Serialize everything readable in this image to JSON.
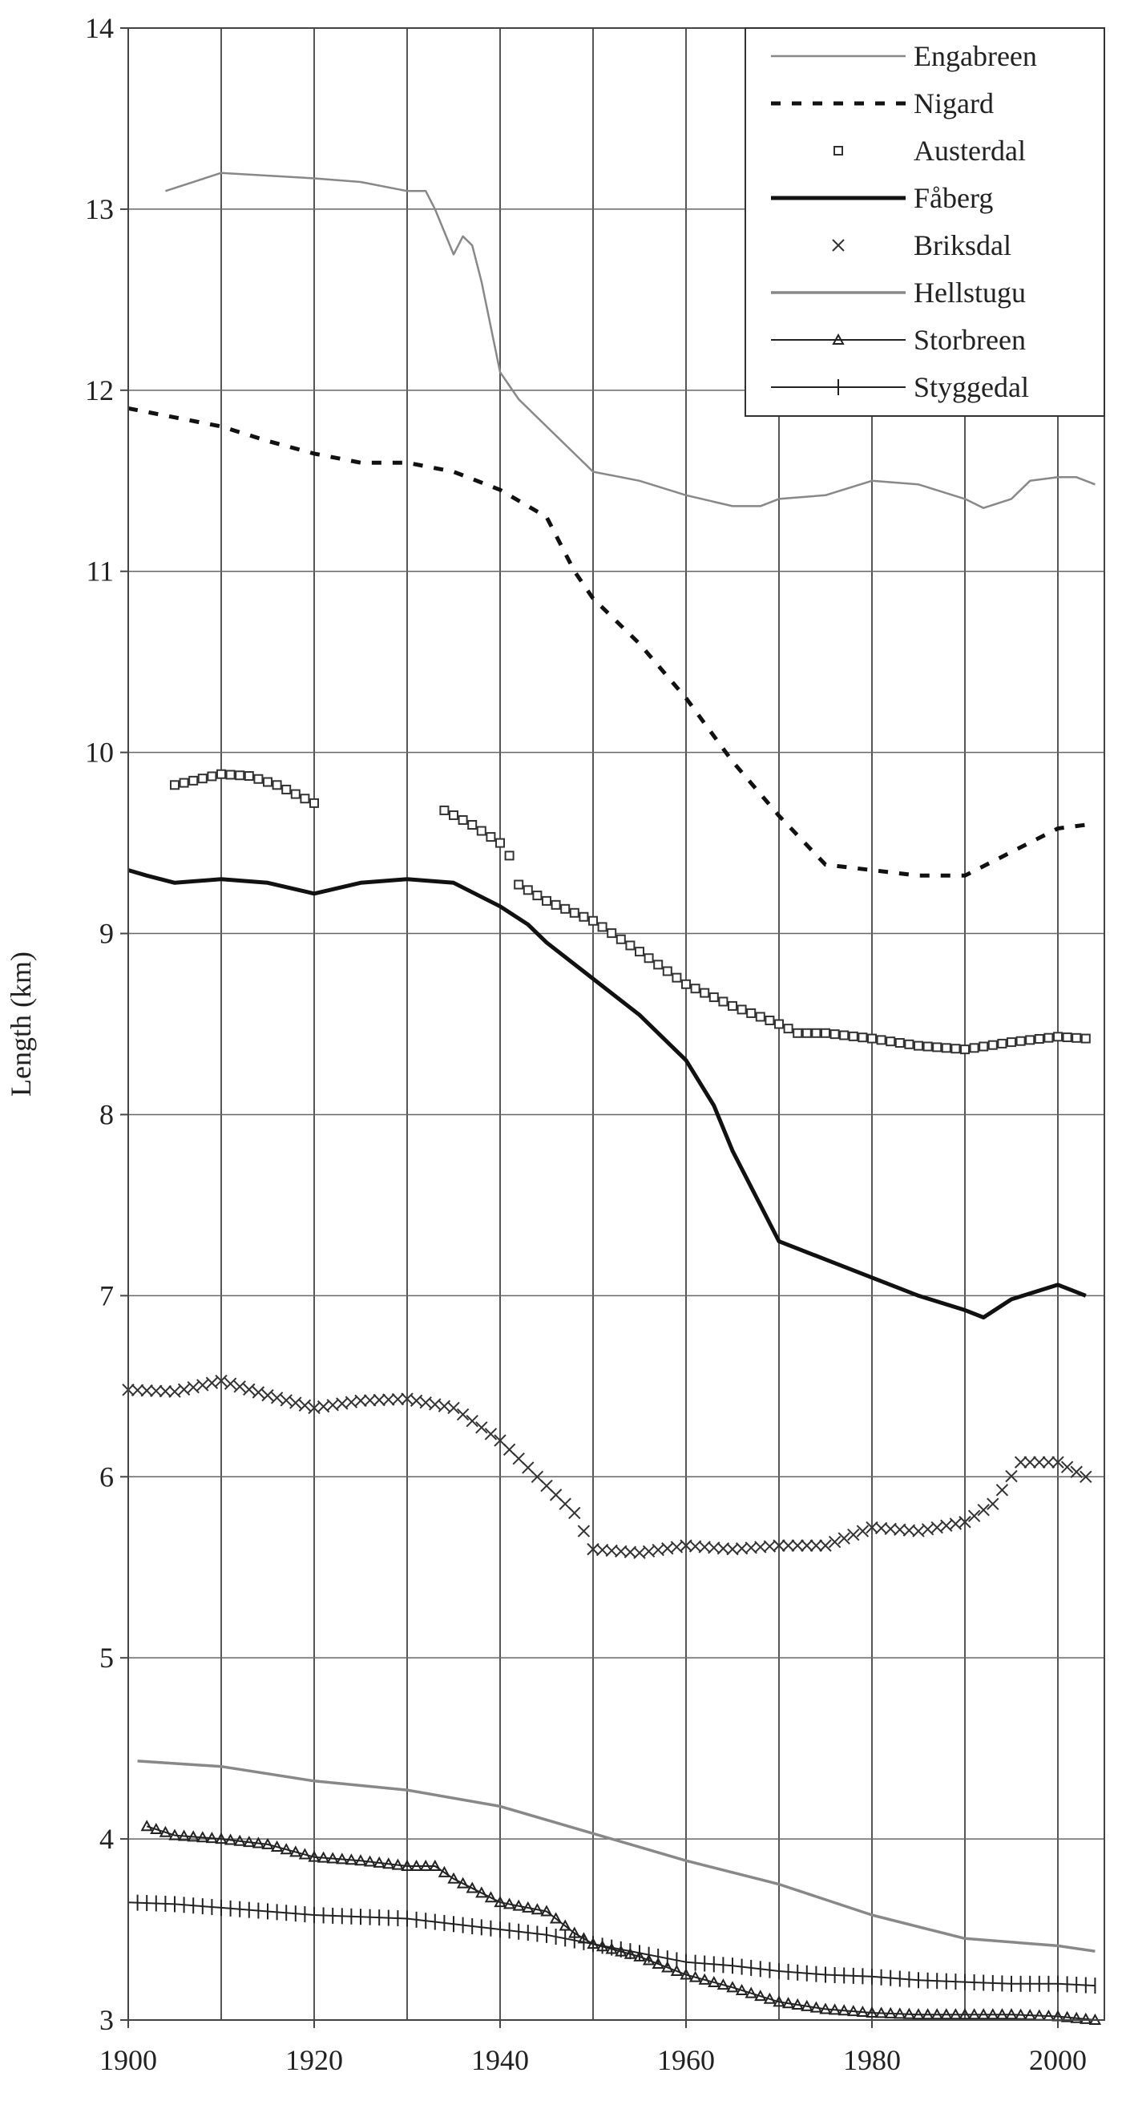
{
  "chart_data": {
    "type": "line",
    "title": "",
    "xlabel": "",
    "ylabel": "Length (km)",
    "xlim": [
      1900,
      2005
    ],
    "ylim": [
      3,
      14
    ],
    "x_ticks": [
      "1900",
      "1920",
      "1940",
      "1960",
      "1980",
      "2000"
    ],
    "y_ticks": [
      "3",
      "4",
      "5",
      "6",
      "7",
      "8",
      "9",
      "10",
      "11",
      "12",
      "13",
      "14"
    ],
    "grid": "vertical",
    "legend_position": "top-right",
    "series": [
      {
        "name": "Engabreen",
        "color": "#888888",
        "style": "thin-solid",
        "points": [
          [
            1904,
            13.1
          ],
          [
            1910,
            13.2
          ],
          [
            1920,
            13.17
          ],
          [
            1925,
            13.15
          ],
          [
            1930,
            13.1
          ],
          [
            1932,
            13.1
          ],
          [
            1933,
            13.0
          ],
          [
            1935,
            12.75
          ],
          [
            1936,
            12.85
          ],
          [
            1937,
            12.8
          ],
          [
            1938,
            12.6
          ],
          [
            1940,
            12.1
          ],
          [
            1942,
            11.95
          ],
          [
            1945,
            11.8
          ],
          [
            1948,
            11.65
          ],
          [
            1950,
            11.55
          ],
          [
            1955,
            11.5
          ],
          [
            1960,
            11.42
          ],
          [
            1965,
            11.36
          ],
          [
            1968,
            11.36
          ],
          [
            1970,
            11.4
          ],
          [
            1975,
            11.42
          ],
          [
            1980,
            11.5
          ],
          [
            1985,
            11.48
          ],
          [
            1990,
            11.4
          ],
          [
            1992,
            11.35
          ],
          [
            1995,
            11.4
          ],
          [
            1997,
            11.5
          ],
          [
            2000,
            11.52
          ],
          [
            2002,
            11.52
          ],
          [
            2004,
            11.48
          ]
        ]
      },
      {
        "name": "Nigard",
        "color": "#111111",
        "style": "dashed",
        "points": [
          [
            1900,
            11.9
          ],
          [
            1905,
            11.85
          ],
          [
            1910,
            11.8
          ],
          [
            1915,
            11.72
          ],
          [
            1920,
            11.65
          ],
          [
            1925,
            11.6
          ],
          [
            1930,
            11.6
          ],
          [
            1935,
            11.55
          ],
          [
            1940,
            11.45
          ],
          [
            1945,
            11.3
          ],
          [
            1948,
            11.0
          ],
          [
            1950,
            10.85
          ],
          [
            1955,
            10.6
          ],
          [
            1960,
            10.3
          ],
          [
            1965,
            9.95
          ],
          [
            1970,
            9.65
          ],
          [
            1975,
            9.38
          ],
          [
            1980,
            9.35
          ],
          [
            1985,
            9.32
          ],
          [
            1990,
            9.32
          ],
          [
            1995,
            9.45
          ],
          [
            2000,
            9.58
          ],
          [
            2003,
            9.6
          ]
        ]
      },
      {
        "name": "Austerdal",
        "color": "#333333",
        "style": "square-markers",
        "segments": [
          [
            [
              1905,
              9.82
            ],
            [
              1910,
              9.88
            ],
            [
              1913,
              9.87
            ],
            [
              1916,
              9.82
            ],
            [
              1920,
              9.72
            ]
          ],
          [
            [
              1934,
              9.68
            ],
            [
              1937,
              9.6
            ],
            [
              1940,
              9.5
            ],
            [
              1941,
              9.43
            ],
            [
              1942,
              9.27
            ],
            [
              1945,
              9.18
            ],
            [
              1950,
              9.07
            ],
            [
              1955,
              8.9
            ],
            [
              1960,
              8.72
            ],
            [
              1965,
              8.6
            ],
            [
              1970,
              8.5
            ],
            [
              1972,
              8.45
            ],
            [
              1975,
              8.45
            ],
            [
              1980,
              8.42
            ],
            [
              1985,
              8.38
            ],
            [
              1990,
              8.36
            ],
            [
              1995,
              8.4
            ],
            [
              2000,
              8.43
            ],
            [
              2003,
              8.42
            ]
          ]
        ]
      },
      {
        "name": "Fåberg",
        "color": "#111111",
        "style": "thick-solid",
        "points": [
          [
            1900,
            9.35
          ],
          [
            1902,
            9.32
          ],
          [
            1905,
            9.28
          ],
          [
            1910,
            9.3
          ],
          [
            1915,
            9.28
          ],
          [
            1920,
            9.22
          ],
          [
            1925,
            9.28
          ],
          [
            1930,
            9.3
          ],
          [
            1935,
            9.28
          ],
          [
            1940,
            9.15
          ],
          [
            1943,
            9.05
          ],
          [
            1945,
            8.95
          ],
          [
            1950,
            8.75
          ],
          [
            1955,
            8.55
          ],
          [
            1960,
            8.3
          ],
          [
            1963,
            8.05
          ],
          [
            1965,
            7.8
          ],
          [
            1968,
            7.5
          ],
          [
            1970,
            7.3
          ],
          [
            1975,
            7.2
          ],
          [
            1980,
            7.1
          ],
          [
            1985,
            7.0
          ],
          [
            1990,
            6.92
          ],
          [
            1992,
            6.88
          ],
          [
            1995,
            6.98
          ],
          [
            2000,
            7.06
          ],
          [
            2003,
            7.0
          ]
        ]
      },
      {
        "name": "Briksdal",
        "color": "#333333",
        "style": "x-markers",
        "points": [
          [
            1900,
            6.48
          ],
          [
            1905,
            6.47
          ],
          [
            1910,
            6.53
          ],
          [
            1915,
            6.45
          ],
          [
            1920,
            6.38
          ],
          [
            1925,
            6.42
          ],
          [
            1930,
            6.43
          ],
          [
            1935,
            6.38
          ],
          [
            1940,
            6.2
          ],
          [
            1945,
            5.95
          ],
          [
            1948,
            5.8
          ],
          [
            1950,
            5.6
          ],
          [
            1955,
            5.58
          ],
          [
            1960,
            5.62
          ],
          [
            1965,
            5.6
          ],
          [
            1970,
            5.62
          ],
          [
            1975,
            5.62
          ],
          [
            1980,
            5.72
          ],
          [
            1985,
            5.7
          ],
          [
            1990,
            5.75
          ],
          [
            1993,
            5.85
          ],
          [
            1996,
            6.08
          ],
          [
            2000,
            6.08
          ],
          [
            2003,
            6.0
          ]
        ]
      },
      {
        "name": "Hellstugu",
        "color": "#888888",
        "style": "solid",
        "points": [
          [
            1901,
            4.43
          ],
          [
            1910,
            4.4
          ],
          [
            1920,
            4.32
          ],
          [
            1930,
            4.27
          ],
          [
            1940,
            4.18
          ],
          [
            1950,
            4.03
          ],
          [
            1960,
            3.88
          ],
          [
            1970,
            3.75
          ],
          [
            1980,
            3.58
          ],
          [
            1990,
            3.45
          ],
          [
            2000,
            3.41
          ],
          [
            2004,
            3.38
          ]
        ]
      },
      {
        "name": "Storbreen",
        "color": "#222222",
        "style": "triangle-markers",
        "points": [
          [
            1902,
            4.07
          ],
          [
            1905,
            4.02
          ],
          [
            1910,
            4.0
          ],
          [
            1915,
            3.97
          ],
          [
            1920,
            3.9
          ],
          [
            1925,
            3.88
          ],
          [
            1930,
            3.85
          ],
          [
            1933,
            3.85
          ],
          [
            1935,
            3.78
          ],
          [
            1940,
            3.65
          ],
          [
            1945,
            3.6
          ],
          [
            1948,
            3.48
          ],
          [
            1950,
            3.42
          ],
          [
            1955,
            3.35
          ],
          [
            1960,
            3.25
          ],
          [
            1965,
            3.18
          ],
          [
            1970,
            3.1
          ],
          [
            1975,
            3.06
          ],
          [
            1980,
            3.04
          ],
          [
            1985,
            3.03
          ],
          [
            1990,
            3.03
          ],
          [
            1995,
            3.03
          ],
          [
            2000,
            3.02
          ],
          [
            2004,
            3.0
          ]
        ]
      },
      {
        "name": "Styggedal",
        "color": "#222222",
        "style": "plus-markers",
        "points": [
          [
            1900,
            3.65
          ],
          [
            1905,
            3.64
          ],
          [
            1910,
            3.62
          ],
          [
            1915,
            3.6
          ],
          [
            1920,
            3.58
          ],
          [
            1925,
            3.57
          ],
          [
            1930,
            3.56
          ],
          [
            1935,
            3.53
          ],
          [
            1940,
            3.5
          ],
          [
            1945,
            3.47
          ],
          [
            1950,
            3.42
          ],
          [
            1955,
            3.37
          ],
          [
            1960,
            3.32
          ],
          [
            1965,
            3.3
          ],
          [
            1970,
            3.27
          ],
          [
            1975,
            3.25
          ],
          [
            1980,
            3.24
          ],
          [
            1985,
            3.22
          ],
          [
            1990,
            3.21
          ],
          [
            1995,
            3.2
          ],
          [
            2000,
            3.2
          ],
          [
            2004,
            3.19
          ]
        ]
      }
    ]
  }
}
